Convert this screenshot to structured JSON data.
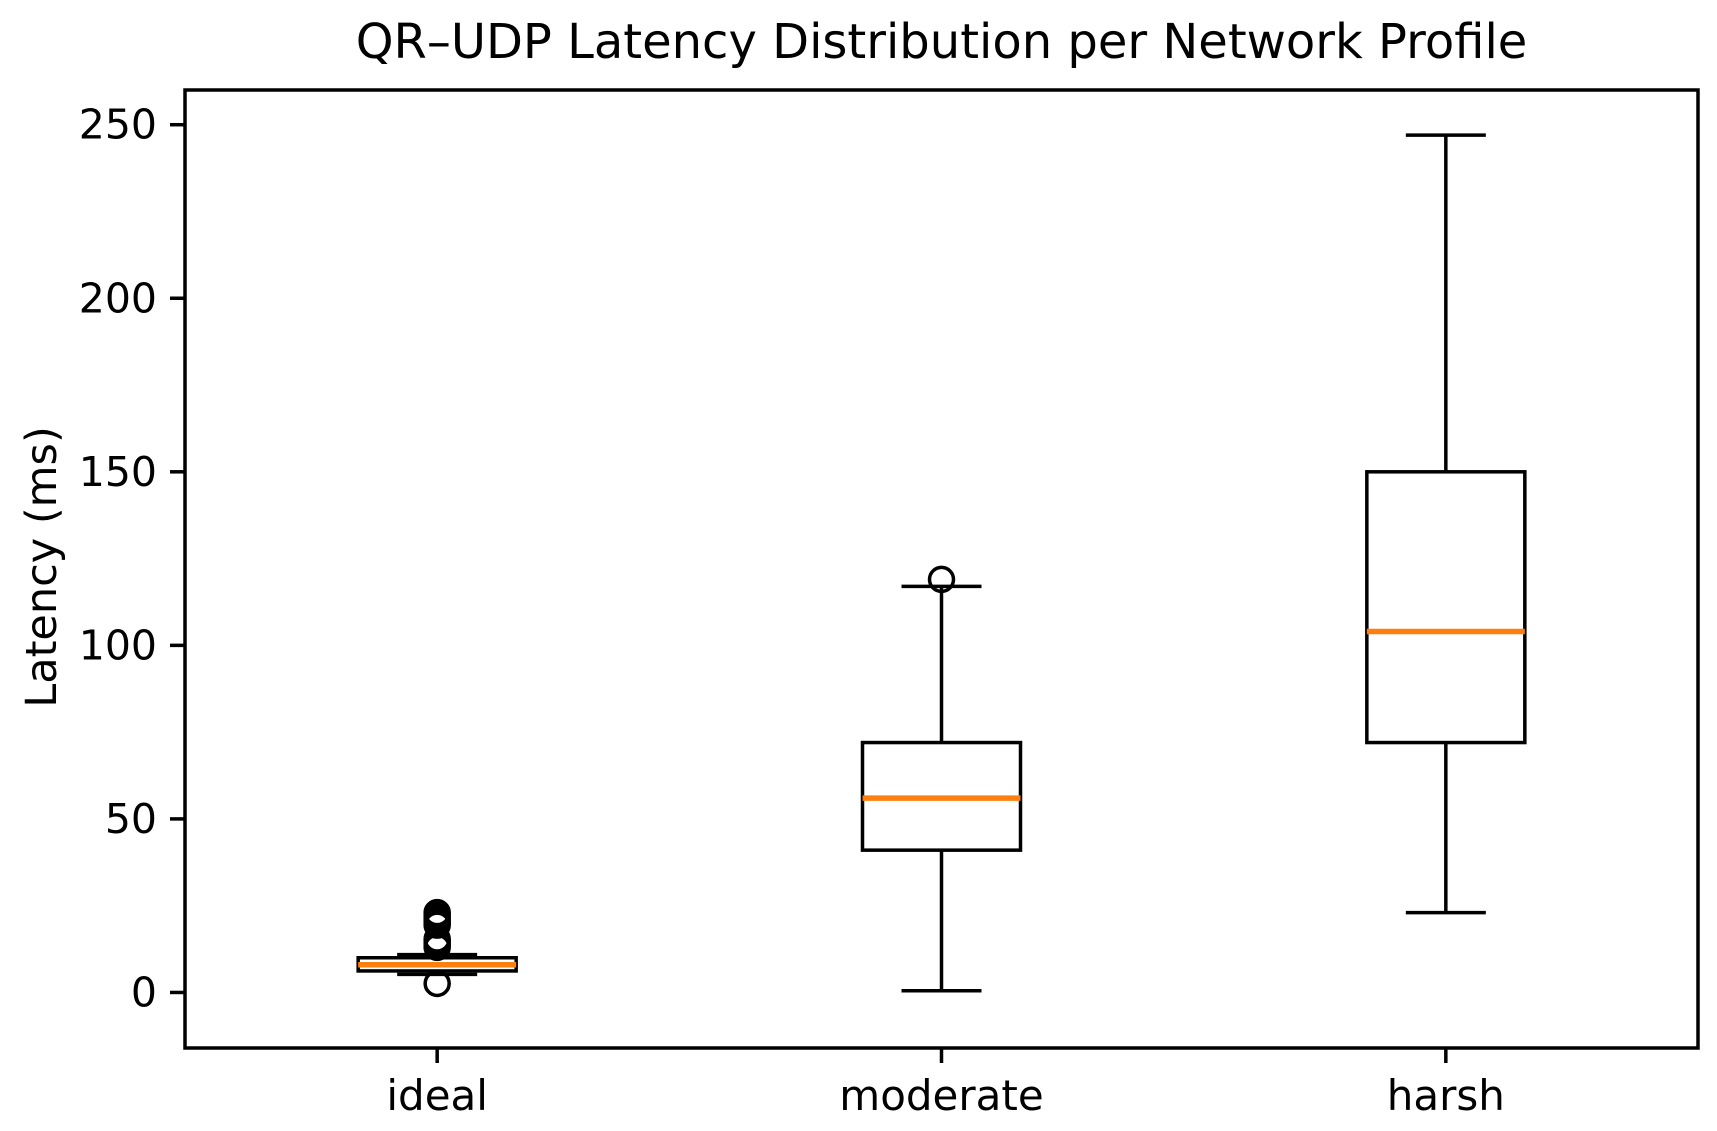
{
  "chart_data": {
    "type": "boxplot",
    "title": "QR–UDP Latency Distribution per Network Profile",
    "xlabel": "",
    "ylabel": "Latency (ms)",
    "categories": [
      "ideal",
      "moderate",
      "harsh"
    ],
    "yticks": [
      0,
      50,
      100,
      150,
      200,
      250
    ],
    "ylim": [
      -16,
      260
    ],
    "grid": false,
    "legend": "none",
    "axis_color": "#000000",
    "text_color": "#000000",
    "median_color": "#ff7f0e",
    "background_color": "#ffffff",
    "series": [
      {
        "label": "ideal",
        "whislo": 5.2,
        "q1": 6.2,
        "med": 8,
        "q3": 10,
        "whishi": 10.9,
        "fliers": [
          23,
          22.4,
          21.8,
          21.2,
          20.6,
          20,
          19.4,
          15.4,
          14.8,
          14.2,
          13.6,
          13,
          2.6
        ]
      },
      {
        "label": "moderate",
        "whislo": 0.5,
        "q1": 41,
        "med": 56,
        "q3": 72,
        "whishi": 117,
        "fliers": [
          119
        ]
      },
      {
        "label": "harsh",
        "whislo": 23,
        "q1": 72,
        "med": 104,
        "q3": 150,
        "whishi": 247,
        "fliers": []
      }
    ]
  }
}
